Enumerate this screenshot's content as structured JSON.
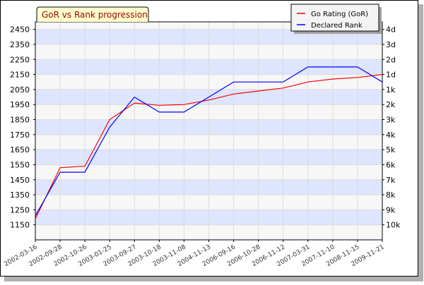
{
  "chart_data": {
    "type": "line",
    "title": "GoR vs Rank progression",
    "legend_position": "top-right",
    "grid": true,
    "background_band_color": "#dde5ff",
    "plot_background_color": "#f7f7f7",
    "x": [
      "2002-03-16",
      "2002-09-28",
      "2002-10-26",
      "2003-01-25",
      "2003-09-27",
      "2003-10-18",
      "2003-11-08",
      "2004-11-13",
      "2006-09-16",
      "2006-10-28",
      "2006-11-12",
      "2007-03-31",
      "2007-11-10",
      "2008-11-15",
      "2009-11-21"
    ],
    "x_tick_labels": [
      "2002-03-16",
      "2002-09-28",
      "2002-10-26",
      "2003-01-25",
      "2003-09-27",
      "2003-10-18",
      "2003-11-08",
      "2004-11-13",
      "2006-09-16",
      "2006-10-28",
      "2006-11-12",
      "2007-03-31",
      "2007-11-10",
      "2008-11-15",
      "2009-11-21"
    ],
    "y_left": {
      "ylim": [
        1050,
        2500
      ],
      "ticks": [
        1150,
        1250,
        1350,
        1450,
        1550,
        1650,
        1750,
        1850,
        1950,
        2050,
        2150,
        2250,
        2350,
        2450
      ]
    },
    "y_right": {
      "tick_labels": [
        "4d",
        "3d",
        "2d",
        "1d",
        "1k",
        "2k",
        "3k",
        "4k",
        "5k",
        "6k",
        "7k",
        "8k",
        "9k",
        "10k"
      ],
      "tick_values": [
        2450,
        2350,
        2250,
        2150,
        2050,
        1950,
        1850,
        1750,
        1650,
        1550,
        1450,
        1350,
        1250,
        1150
      ]
    },
    "series": [
      {
        "name": "Go Rating (GoR)",
        "color": "#ff0000",
        "values": [
          1190,
          1530,
          1540,
          1850,
          1960,
          1945,
          1950,
          1980,
          2020,
          2040,
          2060,
          2100,
          2120,
          2130,
          2150
        ]
      },
      {
        "name": "Declared Rank",
        "color": "#0000ff",
        "values": [
          1210,
          1500,
          1500,
          1800,
          2000,
          1900,
          1900,
          2000,
          2100,
          2100,
          2100,
          2200,
          2200,
          2200,
          2100
        ]
      }
    ]
  }
}
